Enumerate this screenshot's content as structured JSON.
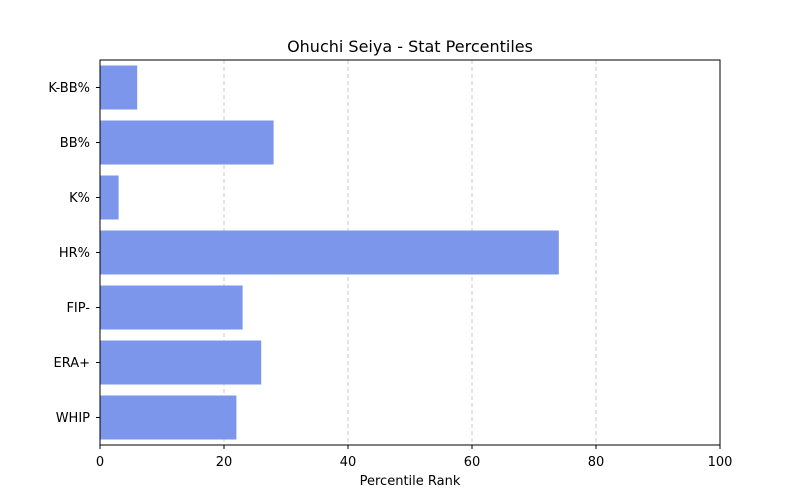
{
  "chart_data": {
    "type": "bar",
    "orientation": "horizontal",
    "title": "Ohuchi Seiya - Stat Percentiles",
    "xlabel": "Percentile Rank",
    "ylabel": "",
    "xlim": [
      0,
      100
    ],
    "xticks": [
      0,
      20,
      40,
      60,
      80,
      100
    ],
    "grid": "x-dashed",
    "categories": [
      "K-BB%",
      "BB%",
      "K%",
      "HR%",
      "FIP-",
      "ERA+",
      "WHIP"
    ],
    "values": [
      6,
      28,
      3,
      74,
      23,
      26,
      22
    ],
    "bar_color": "#7b96ea"
  }
}
